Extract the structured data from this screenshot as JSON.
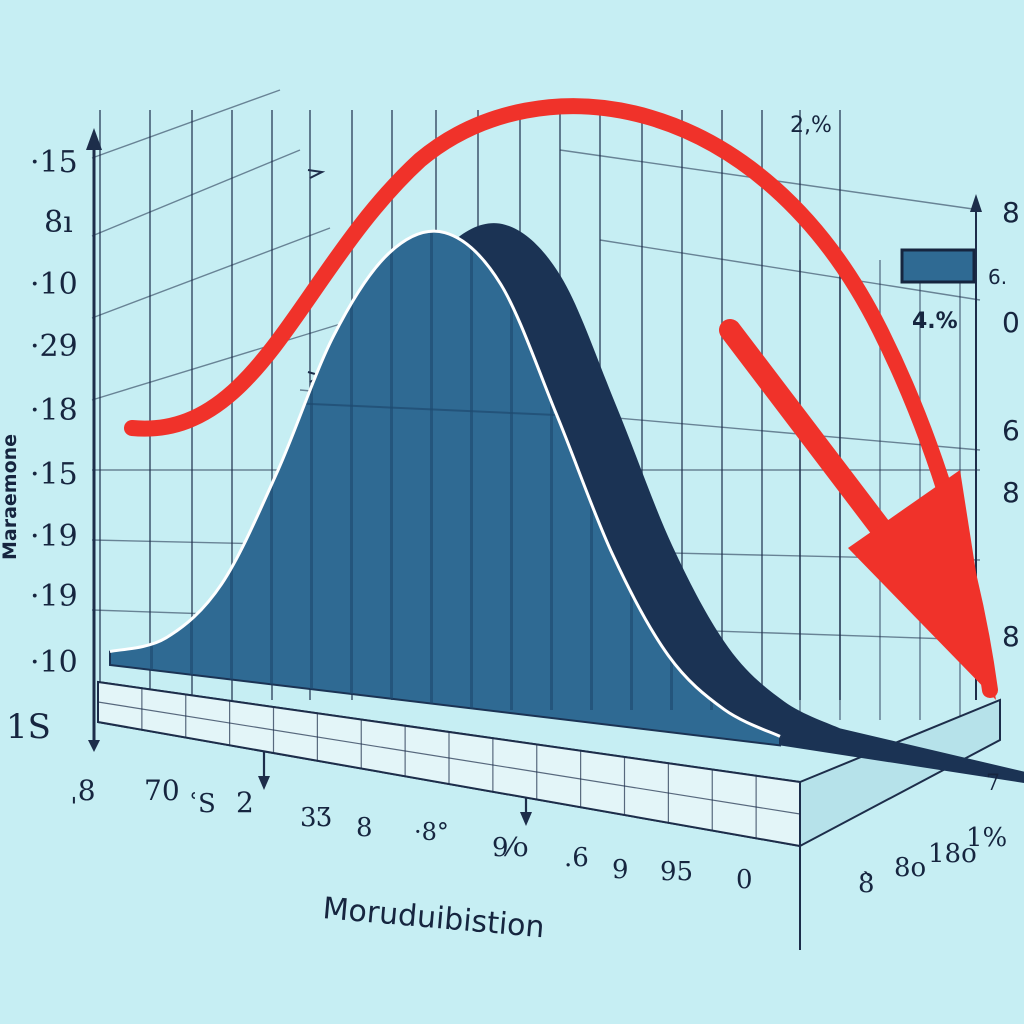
{
  "chart_data": {
    "type": "area",
    "title": "",
    "xlabel": "Moruduibistion",
    "ylabel": "Maraemone",
    "y_tick_labels": [
      "·15",
      "8ı",
      "·10",
      "·29",
      "·18",
      "·15",
      "·19",
      "·19",
      "·10",
      "1S"
    ],
    "x_tick_labels": [
      "ˌ8",
      "70",
      "ʿS",
      "2",
      "3Ʒ",
      "8",
      "·8°",
      "9⁄o",
      ".6",
      "9",
      "95",
      "0"
    ],
    "side_tick_labels": [
      "8̀",
      "8o",
      "18o",
      "1%",
      "7"
    ],
    "right_axis_labels": [
      "8",
      "0",
      "6",
      "8",
      "8"
    ],
    "legend": {
      "label": "6.",
      "value_box": "4.%",
      "position": "top-right"
    },
    "annotations": [
      "2,%"
    ],
    "trend_arrow": {
      "color": "#f0322a",
      "direction": "down",
      "shape": "arc"
    },
    "series": [
      {
        "color": "#2f6a93",
        "shadow_color": "#1b3354",
        "x": [
          0,
          1,
          2,
          3,
          4,
          5,
          6,
          7,
          8,
          9,
          10,
          11,
          12
        ],
        "values": [
          0.6,
          1.5,
          4.2,
          9.5,
          15.8,
          19.8,
          21.0,
          19.0,
          13.5,
          7.6,
          3.4,
          1.3,
          0.4
        ]
      }
    ],
    "ylim": [
      0,
      22
    ],
    "xlim": [
      0,
      12
    ],
    "grid": true,
    "colors": {
      "background": "#c6eef3",
      "grid": "#1d2d4a",
      "area": "#2f6a93",
      "shadow": "#1b3354",
      "arrow": "#f0322a"
    }
  }
}
